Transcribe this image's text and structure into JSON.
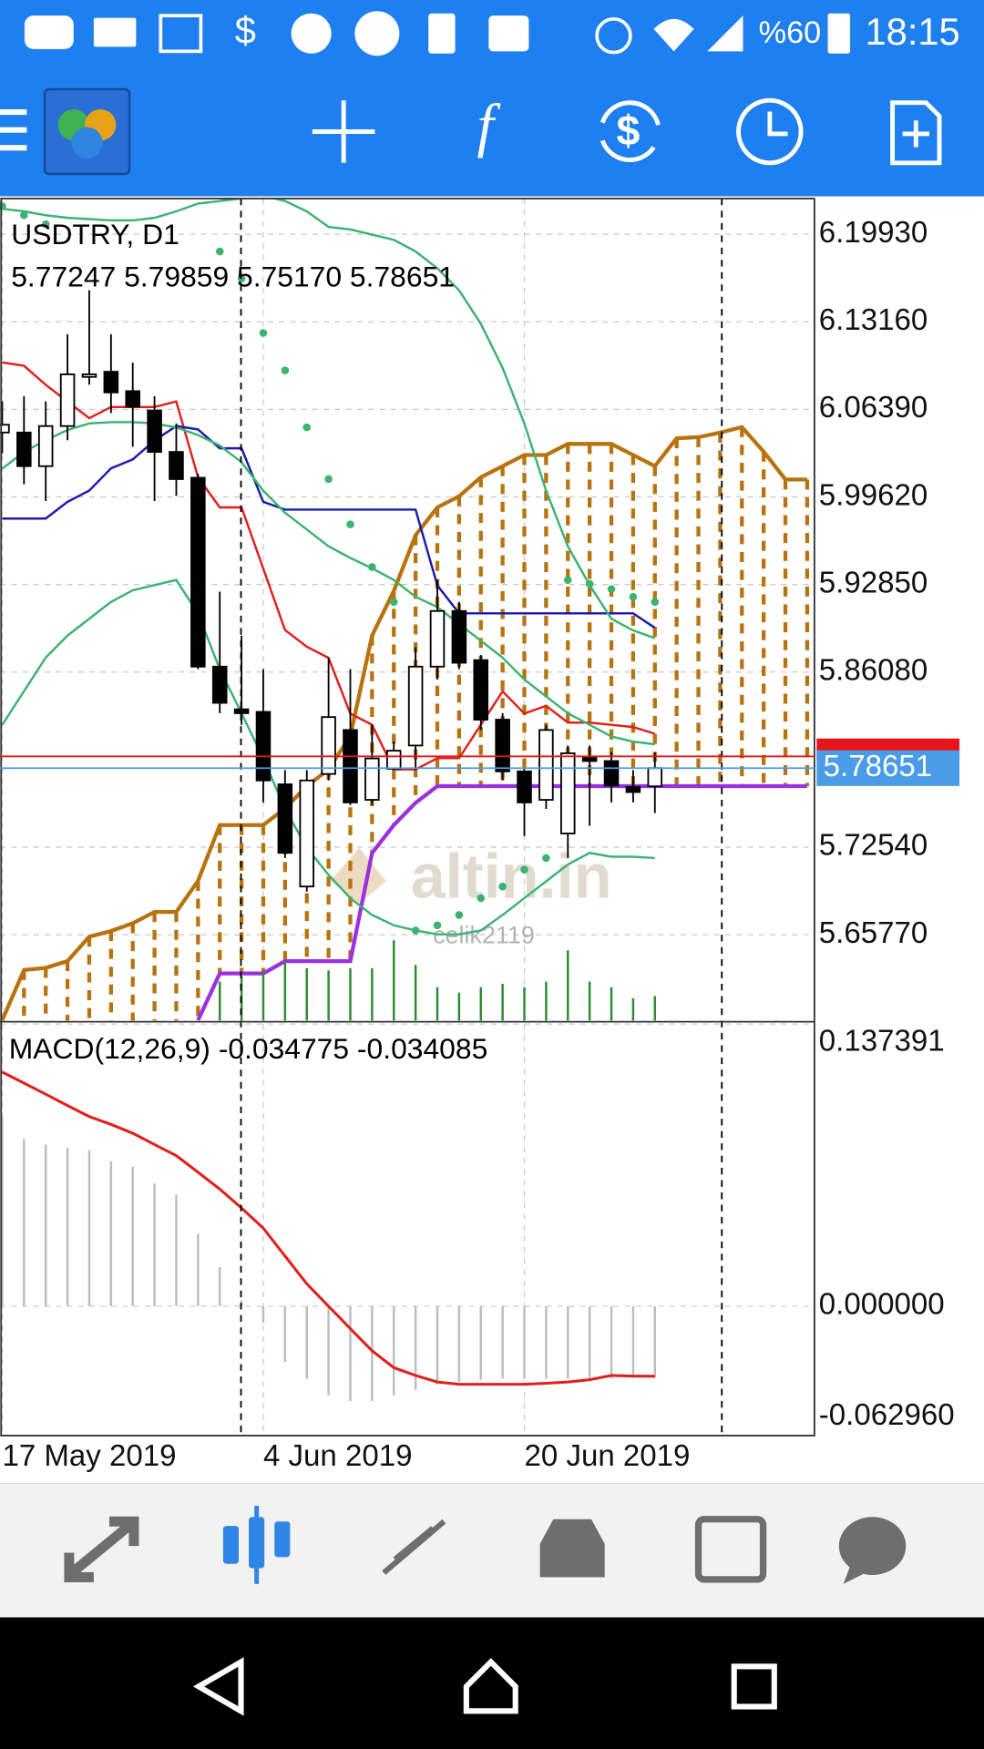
{
  "status_bar": {
    "battery": "%60",
    "time": "18:15"
  },
  "watermark": {
    "logo": "altin.in",
    "user": "celik2119"
  },
  "chart_data": [
    {
      "type": "candlestick",
      "title": "USDTRY, D1",
      "subtitle": "5.77247 5.79859 5.75170 5.78651",
      "categories": [
        "17 May 2019",
        null,
        null,
        null,
        null,
        null,
        null,
        null,
        null,
        null,
        null,
        null,
        "4 Jun 2019",
        null,
        null,
        null,
        null,
        null,
        null,
        null,
        null,
        null,
        null,
        null,
        "20 Jun 2019",
        null,
        null,
        null,
        null,
        null,
        null,
        null,
        null,
        null,
        null,
        null,
        null,
        null
      ],
      "open": [
        6.046,
        6.046,
        6.02,
        6.051,
        6.089,
        6.093,
        6.078,
        6.063,
        6.031,
        6.011,
        5.865,
        5.832,
        5.83,
        5.774,
        5.695,
        5.782,
        5.816,
        5.762,
        5.786,
        5.804,
        5.865,
        5.908,
        5.87,
        5.824,
        5.784,
        5.762,
        5.736,
        5.795,
        5.792,
        5.772,
        5.77247,
        null,
        null,
        null,
        null,
        null,
        null,
        null
      ],
      "high": [
        6.07,
        6.074,
        6.07,
        6.122,
        6.156,
        6.122,
        6.1,
        6.074,
        6.053,
        6.014,
        5.923,
        5.889,
        5.863,
        5.785,
        5.785,
        5.872,
        5.863,
        5.82,
        5.807,
        5.88,
        5.932,
        5.915,
        5.874,
        5.829,
        5.786,
        5.82,
        5.804,
        5.804,
        5.799,
        5.785,
        5.79859,
        null,
        null,
        null,
        null,
        null,
        null,
        null
      ],
      "low": [
        6.03,
        6.006,
        5.993,
        6.04,
        6.083,
        6.061,
        6.035,
        5.993,
        5.997,
        5.863,
        5.829,
        5.82,
        5.76,
        5.717,
        5.691,
        5.777,
        5.758,
        5.758,
        5.785,
        5.785,
        5.855,
        5.863,
        5.816,
        5.777,
        5.734,
        5.755,
        5.717,
        5.742,
        5.76,
        5.76,
        5.7517,
        null,
        null,
        null,
        null,
        null,
        null,
        null
      ],
      "close": [
        6.052,
        6.02,
        6.051,
        6.091,
        6.091,
        6.077,
        6.066,
        6.031,
        6.01,
        5.865,
        5.837,
        5.829,
        5.777,
        5.721,
        5.777,
        5.826,
        5.76,
        5.794,
        5.8,
        5.865,
        5.908,
        5.868,
        5.824,
        5.784,
        5.76,
        5.816,
        5.798,
        5.792,
        5.773,
        5.768,
        5.78651,
        null,
        null,
        null,
        null,
        null,
        null,
        null
      ],
      "up_color": "#ffffff",
      "down_color": "#000000",
      "cloud": {
        "color": "#b8730f",
        "span_b_color": "#9b30e0",
        "span_a": [
          5.5916,
          5.6304,
          5.6321,
          5.6373,
          5.6562,
          5.6606,
          5.6666,
          5.6753,
          5.6753,
          5.6994,
          5.7425,
          5.7425,
          5.7425,
          5.7554,
          5.7726,
          5.7855,
          5.8114,
          5.889,
          5.9235,
          5.9666,
          5.9881,
          5.9967,
          6.0114,
          6.02,
          6.0286,
          6.0286,
          6.0372,
          6.0372,
          6.0372,
          6.0286,
          6.02,
          6.0416,
          6.0424,
          6.0459,
          6.0502,
          6.0312,
          6.0097,
          6.0097
        ],
        "span_b": [
          null,
          null,
          null,
          null,
          null,
          null,
          null,
          null,
          null,
          5.5916,
          5.6278,
          5.6278,
          5.6278,
          5.6373,
          5.6373,
          5.6373,
          5.6373,
          5.7209,
          5.7425,
          5.7597,
          5.7726,
          5.7726,
          5.7726,
          5.7726,
          5.7726,
          5.7726,
          5.7726,
          5.7726,
          5.7726,
          5.7726,
          5.7726,
          5.7726,
          5.7726,
          5.7726,
          5.7726,
          5.7726,
          5.7726,
          5.7726
        ]
      },
      "lines": [
        {
          "color": "#e0201c",
          "values": [
            6.1002,
            6.0976,
            6.0829,
            6.07,
            6.0571,
            6.0657,
            6.0657,
            6.0657,
            6.07,
            6.0114,
            5.9881,
            5.9881,
            5.9407,
            5.8933,
            5.8804,
            5.8717,
            5.8287,
            5.82,
            5.7855,
            5.7855,
            5.7942,
            5.7942,
            5.82,
            5.8459,
            5.8287,
            5.8347,
            5.8217,
            5.8217,
            5.82,
            5.8183,
            5.8131,
            null,
            null,
            null,
            null,
            null,
            null,
            null
          ]
        },
        {
          "color": "#1a1ab0",
          "values": [
            5.9795,
            5.9795,
            5.9795,
            5.9924,
            6.0011,
            6.0183,
            6.0252,
            6.0398,
            6.051,
            6.0484,
            6.0338,
            6.0338,
            5.9924,
            5.9864,
            5.9864,
            5.9864,
            5.9864,
            5.9864,
            5.9864,
            5.9864,
            5.9278,
            5.9062,
            5.9062,
            5.9062,
            5.9062,
            5.9062,
            5.9062,
            5.9062,
            5.9062,
            5.9062,
            5.895,
            null,
            null,
            null,
            null,
            null,
            null,
            null
          ]
        },
        {
          "color": "#3cb371",
          "values": [
            6.219,
            6.217,
            6.214,
            6.212,
            6.211,
            6.21,
            6.21,
            6.212,
            6.217,
            6.223,
            6.225,
            6.227,
            6.229,
            6.225,
            6.217,
            6.205,
            6.203,
            6.199,
            6.195,
            6.186,
            6.173,
            6.156,
            6.13,
            6.096,
            6.053,
            6.001,
            5.958,
            5.928,
            5.902,
            5.893,
            5.887,
            null,
            null,
            null,
            null,
            null,
            null,
            null
          ]
        },
        {
          "color": "#3cb371",
          "values": [
            6.018,
            6.031,
            6.04,
            6.048,
            6.053,
            6.054,
            6.054,
            6.053,
            6.05,
            6.044,
            6.036,
            6.023,
            6.001,
            5.984,
            5.971,
            5.958,
            5.949,
            5.941,
            5.932,
            5.919,
            5.911,
            5.898,
            5.885,
            5.872,
            5.855,
            5.842,
            5.829,
            5.82,
            5.811,
            5.807,
            5.805,
            null,
            null,
            null,
            null,
            null,
            null,
            null
          ]
        },
        {
          "color": "#3cb371",
          "values": [
            5.82,
            5.846,
            5.872,
            5.889,
            5.902,
            5.915,
            5.924,
            5.928,
            5.932,
            5.906,
            5.863,
            5.829,
            5.794,
            5.755,
            5.725,
            5.704,
            5.686,
            5.673,
            5.665,
            5.661,
            5.658,
            5.658,
            5.661,
            5.673,
            5.686,
            5.699,
            5.712,
            5.721,
            5.718,
            5.718,
            5.717,
            null,
            null,
            null,
            null,
            null,
            null,
            null
          ]
        }
      ],
      "sar": {
        "color": "#3cb371",
        "values": [
          6.221,
          6.214,
          6.207,
          null,
          null,
          null,
          null,
          null,
          null,
          null,
          6.186,
          6.165,
          6.123,
          6.094,
          6.05,
          6.01,
          5.975,
          5.942,
          5.915,
          5.661,
          5.665,
          5.673,
          5.686,
          5.695,
          5.708,
          5.717,
          5.932,
          5.929,
          5.925,
          5.919,
          5.915,
          null,
          null,
          null,
          null,
          null,
          null,
          null
        ]
      },
      "volume": {
        "color": "#2e8b2e",
        "values": [
          null,
          null,
          null,
          null,
          null,
          null,
          null,
          null,
          null,
          null,
          35,
          40,
          45,
          53,
          47,
          45,
          47,
          47,
          72,
          50,
          30,
          25,
          30,
          33,
          30,
          35,
          63,
          35,
          30,
          20,
          22,
          null,
          null,
          null,
          null,
          null,
          null,
          null
        ]
      },
      "ask_line": {
        "value": 5.7956,
        "color": "#e8141c"
      },
      "bid_label": "5.78651",
      "bid_color": "#4a9be8",
      "ylim": [
        5.5913,
        6.2269
      ],
      "yticks": [
        {
          "value": 6.1993,
          "label": "6.19930"
        },
        {
          "value": 6.1316,
          "label": "6.13160"
        },
        {
          "value": 6.0639,
          "label": "6.06390"
        },
        {
          "value": 5.9962,
          "label": "5.99620"
        },
        {
          "value": 5.9285,
          "label": "5.92850"
        },
        {
          "value": 5.8608,
          "label": "5.86080"
        },
        {
          "value": 5.7254,
          "label": "5.72540"
        },
        {
          "value": 5.6577,
          "label": "5.65770"
        }
      ],
      "grid": true
    },
    {
      "type": "macd",
      "title": "MACD(12,26,9) -0.034775 -0.034085",
      "color": "#bdbdbd",
      "values": [
        0.0923,
        0.0814,
        0.0787,
        0.0771,
        0.076,
        0.0706,
        0.0679,
        0.0597,
        0.0543,
        0.0353,
        0.019,
        0.0027,
        -0.0081,
        -0.0271,
        -0.0353,
        -0.0434,
        -0.0462,
        -0.0462,
        -0.0434,
        -0.0407,
        -0.038,
        -0.0369,
        -0.0358,
        -0.0353,
        -0.0353,
        -0.0353,
        -0.0353,
        -0.0353,
        -0.0353,
        -0.035,
        -0.034775
      ],
      "signal": {
        "color": "#e0201c",
        "values": [
          0.114,
          0.1086,
          0.1032,
          0.0977,
          0.0923,
          0.0885,
          0.0842,
          0.0787,
          0.0733,
          0.0652,
          0.057,
          0.0478,
          0.038,
          0.0244,
          0.0109,
          0,
          -0.0109,
          -0.0217,
          -0.0299,
          -0.0337,
          -0.0369,
          -0.038,
          -0.038,
          -0.038,
          -0.038,
          -0.0375,
          -0.0369,
          -0.0358,
          -0.0337,
          -0.034,
          -0.034085
        ]
      },
      "ylim": [
        -0.06296,
        0.137391
      ],
      "yticks": [
        0.137391,
        {
          "value": 0,
          "label": "0.000000"
        },
        {
          "value": -0.06296,
          "label": "-0.062960"
        }
      ],
      "grid": true
    }
  ]
}
